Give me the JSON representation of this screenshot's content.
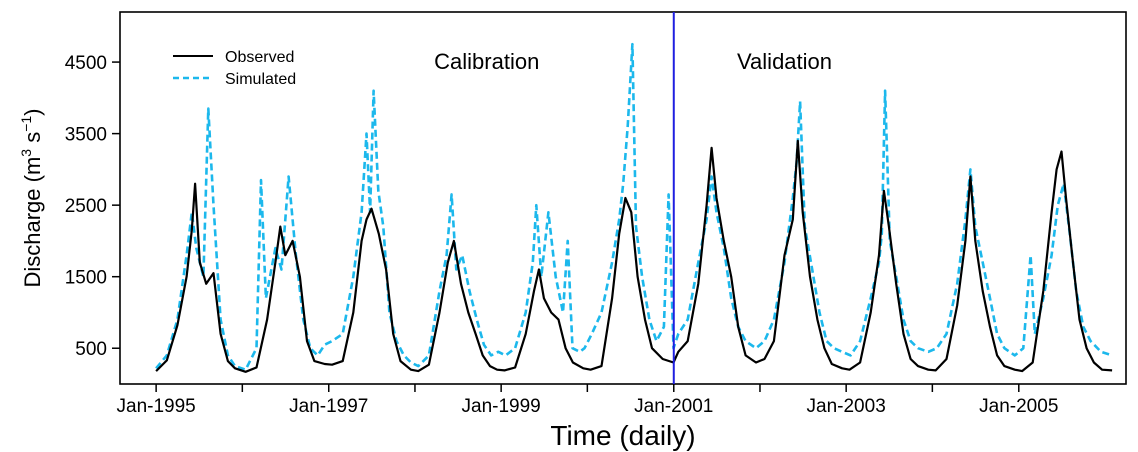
{
  "chart_data": {
    "type": "line",
    "title": "",
    "xlabel": "Time (daily)",
    "ylabel_main": "Discharge (m",
    "ylabel_sup1": "3",
    "ylabel_mid": " s",
    "ylabel_sup2": "−1",
    "ylabel_end": ")",
    "xlim": [
      "1994-08-01",
      "2006-03-31"
    ],
    "ylim": [
      0,
      5200
    ],
    "yticks": [
      500,
      1500,
      2500,
      3500,
      4500
    ],
    "xticks": [
      {
        "label": "Jan-1995",
        "date": "1995-01-01"
      },
      {
        "label": "",
        "date": "1996-01-01"
      },
      {
        "label": "Jan-1997",
        "date": "1997-01-01"
      },
      {
        "label": "",
        "date": "1998-01-01"
      },
      {
        "label": "Jan-1999",
        "date": "1999-01-01"
      },
      {
        "label": "",
        "date": "2000-01-01"
      },
      {
        "label": "Jan-2001",
        "date": "2001-01-01"
      },
      {
        "label": "",
        "date": "2002-01-01"
      },
      {
        "label": "Jan-2003",
        "date": "2003-01-01"
      },
      {
        "label": "",
        "date": "2004-01-01"
      },
      {
        "label": "Jan-2005",
        "date": "2005-01-01"
      }
    ],
    "split_date": "2001-01-01",
    "split_color": "#1f1fe0",
    "annotations": [
      {
        "text": "Calibration",
        "date": "1998-11-01",
        "value": 4400
      },
      {
        "text": "Validation",
        "date": "2002-04-15",
        "value": 4400
      }
    ],
    "legend": {
      "position": "top-left"
    },
    "series": [
      {
        "name": "Observed",
        "color": "#000000",
        "style": "solid",
        "points": [
          [
            "1995-01-01",
            180
          ],
          [
            "1995-02-15",
            330
          ],
          [
            "1995-04-01",
            820
          ],
          [
            "1995-05-10",
            1500
          ],
          [
            "1995-06-01",
            2150
          ],
          [
            "1995-06-15",
            2800
          ],
          [
            "1995-07-05",
            1700
          ],
          [
            "1995-08-01",
            1400
          ],
          [
            "1995-09-01",
            1550
          ],
          [
            "1995-10-01",
            700
          ],
          [
            "1995-11-01",
            320
          ],
          [
            "1995-12-01",
            220
          ],
          [
            "1996-01-15",
            170
          ],
          [
            "1996-03-01",
            230
          ],
          [
            "1996-04-15",
            900
          ],
          [
            "1996-05-20",
            1700
          ],
          [
            "1996-06-10",
            2200
          ],
          [
            "1996-07-01",
            1800
          ],
          [
            "1996-08-01",
            2000
          ],
          [
            "1996-09-01",
            1500
          ],
          [
            "1996-10-01",
            600
          ],
          [
            "1996-11-01",
            320
          ],
          [
            "1996-12-15",
            280
          ],
          [
            "1997-01-15",
            270
          ],
          [
            "1997-03-01",
            320
          ],
          [
            "1997-04-15",
            1000
          ],
          [
            "1997-05-20",
            2000
          ],
          [
            "1997-06-10",
            2300
          ],
          [
            "1997-07-01",
            2450
          ],
          [
            "1997-08-01",
            2100
          ],
          [
            "1997-09-01",
            1600
          ],
          [
            "1997-10-01",
            700
          ],
          [
            "1997-11-01",
            320
          ],
          [
            "1997-12-15",
            200
          ],
          [
            "1998-01-15",
            180
          ],
          [
            "1998-03-01",
            270
          ],
          [
            "1998-04-15",
            1000
          ],
          [
            "1998-05-20",
            1700
          ],
          [
            "1998-06-15",
            2000
          ],
          [
            "1998-07-15",
            1400
          ],
          [
            "1998-08-15",
            1000
          ],
          [
            "1998-09-15",
            700
          ],
          [
            "1998-10-15",
            400
          ],
          [
            "1998-11-15",
            250
          ],
          [
            "1998-12-15",
            200
          ],
          [
            "1999-01-15",
            190
          ],
          [
            "1999-03-01",
            230
          ],
          [
            "1999-04-15",
            700
          ],
          [
            "1999-05-20",
            1300
          ],
          [
            "1999-06-10",
            1600
          ],
          [
            "1999-07-01",
            1200
          ],
          [
            "1999-08-01",
            1000
          ],
          [
            "1999-09-01",
            900
          ],
          [
            "1999-10-01",
            500
          ],
          [
            "1999-11-01",
            300
          ],
          [
            "1999-12-15",
            220
          ],
          [
            "2000-01-15",
            200
          ],
          [
            "2000-03-01",
            250
          ],
          [
            "2000-04-15",
            1200
          ],
          [
            "2000-05-15",
            2100
          ],
          [
            "2000-06-10",
            2600
          ],
          [
            "2000-07-05",
            2400
          ],
          [
            "2000-08-01",
            1500
          ],
          [
            "2000-09-01",
            900
          ],
          [
            "2000-10-01",
            500
          ],
          [
            "2000-11-15",
            350
          ],
          [
            "2000-12-31",
            300
          ],
          [
            "2001-01-20",
            450
          ],
          [
            "2001-03-01",
            600
          ],
          [
            "2001-04-15",
            1400
          ],
          [
            "2001-05-20",
            2500
          ],
          [
            "2001-06-10",
            3300
          ],
          [
            "2001-07-01",
            2600
          ],
          [
            "2001-08-01",
            2000
          ],
          [
            "2001-09-01",
            1500
          ],
          [
            "2001-10-01",
            800
          ],
          [
            "2001-11-01",
            400
          ],
          [
            "2001-12-15",
            300
          ],
          [
            "2002-01-20",
            350
          ],
          [
            "2002-03-01",
            600
          ],
          [
            "2002-04-15",
            1800
          ],
          [
            "2002-05-20",
            2300
          ],
          [
            "2002-06-10",
            3400
          ],
          [
            "2002-07-01",
            2400
          ],
          [
            "2002-08-01",
            1500
          ],
          [
            "2002-09-01",
            900
          ],
          [
            "2002-10-01",
            500
          ],
          [
            "2002-11-01",
            280
          ],
          [
            "2002-12-15",
            220
          ],
          [
            "2003-01-15",
            200
          ],
          [
            "2003-03-01",
            300
          ],
          [
            "2003-04-15",
            1000
          ],
          [
            "2003-05-20",
            1800
          ],
          [
            "2003-06-10",
            2700
          ],
          [
            "2003-07-01",
            2200
          ],
          [
            "2003-08-01",
            1400
          ],
          [
            "2003-09-01",
            700
          ],
          [
            "2003-10-01",
            350
          ],
          [
            "2003-11-01",
            250
          ],
          [
            "2003-12-15",
            200
          ],
          [
            "2004-01-15",
            190
          ],
          [
            "2004-03-01",
            350
          ],
          [
            "2004-04-15",
            1100
          ],
          [
            "2004-05-20",
            2000
          ],
          [
            "2004-06-10",
            2900
          ],
          [
            "2004-07-01",
            2000
          ],
          [
            "2004-08-01",
            1300
          ],
          [
            "2004-09-01",
            800
          ],
          [
            "2004-10-01",
            400
          ],
          [
            "2004-11-01",
            250
          ],
          [
            "2004-12-15",
            200
          ],
          [
            "2005-01-15",
            180
          ],
          [
            "2005-03-01",
            300
          ],
          [
            "2005-04-15",
            1300
          ],
          [
            "2005-05-20",
            2400
          ],
          [
            "2005-06-10",
            3000
          ],
          [
            "2005-07-01",
            3250
          ],
          [
            "2005-07-20",
            2600
          ],
          [
            "2005-08-15",
            1800
          ],
          [
            "2005-09-15",
            900
          ],
          [
            "2005-10-15",
            500
          ],
          [
            "2005-11-15",
            300
          ],
          [
            "2005-12-20",
            200
          ],
          [
            "2006-01-31",
            190
          ]
        ]
      },
      {
        "name": "Simulated",
        "color": "#1cb8ec",
        "style": "dashed",
        "points": [
          [
            "1995-01-01",
            220
          ],
          [
            "1995-02-15",
            400
          ],
          [
            "1995-04-01",
            900
          ],
          [
            "1995-05-10",
            1800
          ],
          [
            "1995-06-01",
            2400
          ],
          [
            "1995-06-20",
            1900
          ],
          [
            "1995-07-20",
            1500
          ],
          [
            "1995-08-10",
            3850
          ],
          [
            "1995-09-01",
            2500
          ],
          [
            "1995-10-01",
            900
          ],
          [
            "1995-11-01",
            400
          ],
          [
            "1995-12-01",
            250
          ],
          [
            "1996-01-15",
            200
          ],
          [
            "1996-03-01",
            500
          ],
          [
            "1996-03-20",
            2850
          ],
          [
            "1996-04-10",
            1200
          ],
          [
            "1996-05-20",
            1900
          ],
          [
            "1996-06-15",
            1600
          ],
          [
            "1996-07-15",
            2900
          ],
          [
            "1996-08-15",
            1800
          ],
          [
            "1996-09-15",
            900
          ],
          [
            "1996-10-15",
            500
          ],
          [
            "1996-11-15",
            400
          ],
          [
            "1996-12-15",
            550
          ],
          [
            "1997-01-15",
            600
          ],
          [
            "1997-03-01",
            700
          ],
          [
            "1997-04-15",
            1500
          ],
          [
            "1997-05-20",
            2400
          ],
          [
            "1997-06-10",
            3500
          ],
          [
            "1997-06-25",
            2400
          ],
          [
            "1997-07-10",
            4100
          ],
          [
            "1997-07-30",
            2700
          ],
          [
            "1997-08-20",
            2200
          ],
          [
            "1997-09-15",
            1000
          ],
          [
            "1997-10-15",
            600
          ],
          [
            "1997-11-15",
            400
          ],
          [
            "1997-12-15",
            300
          ],
          [
            "1998-01-15",
            250
          ],
          [
            "1998-03-01",
            400
          ],
          [
            "1998-04-15",
            1300
          ],
          [
            "1998-05-15",
            1800
          ],
          [
            "1998-06-05",
            2650
          ],
          [
            "1998-06-25",
            1600
          ],
          [
            "1998-07-20",
            1800
          ],
          [
            "1998-08-20",
            1300
          ],
          [
            "1998-09-20",
            900
          ],
          [
            "1998-10-20",
            550
          ],
          [
            "1998-11-20",
            400
          ],
          [
            "1998-12-20",
            450
          ],
          [
            "1999-01-20",
            400
          ],
          [
            "1999-03-01",
            500
          ],
          [
            "1999-04-15",
            1000
          ],
          [
            "1999-05-15",
            1700
          ],
          [
            "1999-05-30",
            2500
          ],
          [
            "1999-06-20",
            1500
          ],
          [
            "1999-07-20",
            2400
          ],
          [
            "1999-08-20",
            1500
          ],
          [
            "1999-09-20",
            1000
          ],
          [
            "1999-10-10",
            2000
          ],
          [
            "1999-10-30",
            500
          ],
          [
            "1999-11-30",
            450
          ],
          [
            "1999-12-20",
            500
          ],
          [
            "2000-01-20",
            700
          ],
          [
            "2000-03-01",
            1000
          ],
          [
            "2000-04-15",
            1700
          ],
          [
            "2000-05-15",
            2300
          ],
          [
            "2000-06-01",
            2800
          ],
          [
            "2000-06-20",
            3600
          ],
          [
            "2000-07-10",
            4750
          ],
          [
            "2000-07-25",
            2200
          ],
          [
            "2000-08-20",
            1500
          ],
          [
            "2000-09-20",
            900
          ],
          [
            "2000-10-20",
            600
          ],
          [
            "2000-11-20",
            800
          ],
          [
            "2000-12-10",
            2650
          ],
          [
            "2000-12-31",
            500
          ],
          [
            "2001-01-20",
            700
          ],
          [
            "2001-03-01",
            900
          ],
          [
            "2001-04-15",
            1700
          ],
          [
            "2001-05-20",
            2300
          ],
          [
            "2001-06-10",
            2900
          ],
          [
            "2001-07-01",
            2400
          ],
          [
            "2001-08-01",
            1900
          ],
          [
            "2001-09-01",
            1200
          ],
          [
            "2001-10-01",
            800
          ],
          [
            "2001-11-01",
            600
          ],
          [
            "2001-12-15",
            500
          ],
          [
            "2002-01-20",
            600
          ],
          [
            "2002-03-01",
            900
          ],
          [
            "2002-04-15",
            1700
          ],
          [
            "2002-05-20",
            2600
          ],
          [
            "2002-06-05",
            3100
          ],
          [
            "2002-06-20",
            3950
          ],
          [
            "2002-07-10",
            2200
          ],
          [
            "2002-08-10",
            1600
          ],
          [
            "2002-09-10",
            1000
          ],
          [
            "2002-10-10",
            600
          ],
          [
            "2002-11-10",
            500
          ],
          [
            "2002-12-15",
            450
          ],
          [
            "2003-01-20",
            400
          ],
          [
            "2003-03-01",
            600
          ],
          [
            "2003-04-15",
            1200
          ],
          [
            "2003-05-20",
            1700
          ],
          [
            "2003-06-01",
            2100
          ],
          [
            "2003-06-15",
            4100
          ],
          [
            "2003-07-05",
            2000
          ],
          [
            "2003-08-01",
            1500
          ],
          [
            "2003-09-01",
            900
          ],
          [
            "2003-10-01",
            600
          ],
          [
            "2003-11-01",
            500
          ],
          [
            "2003-12-15",
            450
          ],
          [
            "2004-01-20",
            500
          ],
          [
            "2004-03-01",
            700
          ],
          [
            "2004-04-15",
            1400
          ],
          [
            "2004-05-20",
            2300
          ],
          [
            "2004-06-10",
            3000
          ],
          [
            "2004-07-01",
            2200
          ],
          [
            "2004-08-01",
            1700
          ],
          [
            "2004-09-01",
            1200
          ],
          [
            "2004-10-01",
            700
          ],
          [
            "2004-11-01",
            500
          ],
          [
            "2004-12-15",
            400
          ],
          [
            "2005-01-20",
            500
          ],
          [
            "2005-02-20",
            1800
          ],
          [
            "2005-03-10",
            700
          ],
          [
            "2005-04-15",
            1200
          ],
          [
            "2005-05-20",
            1800
          ],
          [
            "2005-06-15",
            2500
          ],
          [
            "2005-07-10",
            2800
          ],
          [
            "2005-08-05",
            2100
          ],
          [
            "2005-09-01",
            1300
          ],
          [
            "2005-10-01",
            800
          ],
          [
            "2005-11-01",
            600
          ],
          [
            "2005-12-15",
            450
          ],
          [
            "2006-01-31",
            400
          ]
        ]
      }
    ]
  }
}
